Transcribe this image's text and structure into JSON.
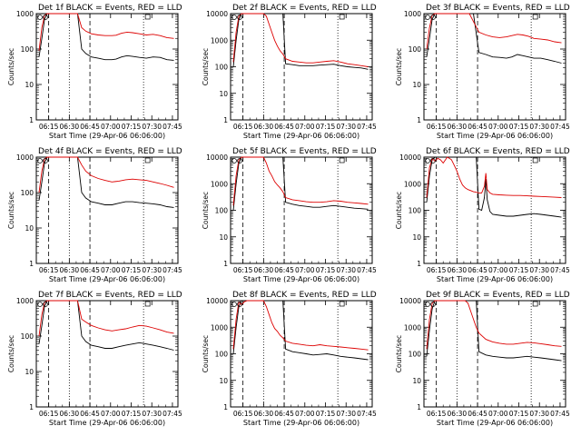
{
  "figure": {
    "xlabel": "Start Time (29-Apr-06 06:06:00)",
    "ylabel": "Counts/sec",
    "x_ticks": [
      "06:15",
      "06:30",
      "06:45",
      "07:00",
      "07:15",
      "07:30",
      "07:45"
    ],
    "y_ticks": [
      "1",
      "10",
      "100",
      "1000",
      "10000"
    ]
  },
  "colors": {
    "events": "#000000",
    "lld": "#dd0000",
    "axis": "#000000"
  },
  "chart_data": [
    {
      "type": "line",
      "title": "Det 1f BLACK = Events, RED = LLD",
      "y_log": true,
      "ylim": [
        1,
        1000
      ],
      "xlim_min": [
        0,
        103
      ],
      "x_min": [
        2,
        4,
        6,
        8,
        10,
        12,
        14,
        17,
        20,
        24,
        28,
        30,
        33,
        36,
        40,
        45,
        50,
        55,
        58,
        62,
        66,
        70,
        75,
        80,
        85,
        90,
        95,
        100
      ],
      "series": [
        {
          "name": "Events",
          "values": [
            60,
            200,
            700,
            1000,
            1000,
            1000,
            1000,
            1000,
            1000,
            1000,
            1000,
            1000,
            100,
            75,
            60,
            55,
            50,
            50,
            52,
            60,
            65,
            62,
            58,
            55,
            60,
            58,
            50,
            48
          ]
        },
        {
          "name": "LLD",
          "values": [
            90,
            400,
            900,
            1000,
            1000,
            1000,
            1000,
            1000,
            1000,
            1000,
            1000,
            1000,
            400,
            320,
            270,
            250,
            240,
            240,
            245,
            280,
            300,
            290,
            270,
            250,
            260,
            240,
            210,
            200
          ]
        }
      ]
    },
    {
      "type": "line",
      "title": "Det 2f BLACK = Events, RED = LLD",
      "y_log": true,
      "ylim": [
        1,
        10000
      ],
      "xlim_min": [
        0,
        103
      ],
      "x_min": [
        2,
        4,
        6,
        8,
        10,
        12,
        14,
        17,
        20,
        22,
        24,
        26,
        28,
        30,
        32,
        34,
        36,
        38,
        40,
        45,
        50,
        55,
        60,
        65,
        70,
        75,
        80,
        85,
        90,
        95,
        100
      ],
      "series": [
        {
          "name": "Events",
          "values": [
            100,
            1000,
            6000,
            10000,
            10000,
            10000,
            10000,
            10000,
            10000,
            10000,
            10000,
            10000,
            10000,
            10000,
            10000,
            10000,
            10000,
            10000,
            130,
            120,
            110,
            110,
            110,
            115,
            120,
            125,
            110,
            100,
            95,
            90,
            80
          ]
        },
        {
          "name": "LLD",
          "values": [
            150,
            2000,
            8000,
            10000,
            10000,
            10000,
            10000,
            10000,
            10000,
            10000,
            10000,
            8000,
            4000,
            2000,
            1000,
            600,
            400,
            300,
            200,
            160,
            150,
            140,
            140,
            150,
            160,
            170,
            150,
            130,
            120,
            110,
            100
          ]
        }
      ]
    },
    {
      "type": "line",
      "title": "Det 3f BLACK = Events, RED = LLD",
      "y_log": true,
      "ylim": [
        1,
        1000
      ],
      "xlim_min": [
        0,
        103
      ],
      "x_min": [
        2,
        4,
        6,
        8,
        10,
        12,
        14,
        17,
        20,
        24,
        28,
        30,
        33,
        36,
        40,
        45,
        50,
        55,
        60,
        64,
        68,
        72,
        76,
        80,
        85,
        90,
        95,
        100
      ],
      "series": [
        {
          "name": "Events",
          "values": [
            60,
            200,
            700,
            1000,
            1000,
            1000,
            1000,
            1000,
            1000,
            1000,
            1000,
            1000,
            1000,
            1000,
            80,
            70,
            60,
            58,
            55,
            60,
            70,
            65,
            60,
            55,
            55,
            50,
            45,
            40
          ]
        },
        {
          "name": "LLD",
          "values": [
            100,
            400,
            900,
            1000,
            1000,
            1000,
            1000,
            1000,
            1000,
            1000,
            1000,
            1000,
            1000,
            600,
            300,
            250,
            220,
            210,
            220,
            240,
            260,
            250,
            230,
            200,
            190,
            180,
            160,
            150
          ]
        }
      ]
    },
    {
      "type": "line",
      "title": "Det 4f BLACK = Events, RED = LLD",
      "y_log": true,
      "ylim": [
        1,
        1000
      ],
      "xlim_min": [
        0,
        103
      ],
      "x_min": [
        2,
        4,
        6,
        8,
        10,
        12,
        14,
        17,
        20,
        24,
        28,
        30,
        33,
        36,
        40,
        45,
        50,
        55,
        60,
        65,
        70,
        75,
        80,
        85,
        90,
        95,
        100
      ],
      "series": [
        {
          "name": "Events",
          "values": [
            60,
            200,
            700,
            1000,
            1000,
            1000,
            1000,
            1000,
            1000,
            1000,
            1000,
            1000,
            100,
            70,
            55,
            50,
            45,
            45,
            50,
            55,
            55,
            52,
            50,
            48,
            45,
            40,
            38
          ]
        },
        {
          "name": "LLD",
          "values": [
            100,
            400,
            900,
            1000,
            1000,
            1000,
            1000,
            1000,
            1000,
            1000,
            1000,
            1000,
            600,
            400,
            300,
            250,
            220,
            200,
            210,
            230,
            240,
            230,
            220,
            200,
            180,
            160,
            140
          ]
        }
      ]
    },
    {
      "type": "line",
      "title": "Det 5f BLACK = Events, RED = LLD",
      "y_log": true,
      "ylim": [
        1,
        10000
      ],
      "xlim_min": [
        0,
        103
      ],
      "x_min": [
        2,
        4,
        6,
        8,
        10,
        12,
        14,
        17,
        20,
        22,
        24,
        26,
        28,
        30,
        32,
        34,
        36,
        38,
        40,
        45,
        50,
        55,
        60,
        65,
        70,
        75,
        80,
        85,
        90,
        95,
        100
      ],
      "series": [
        {
          "name": "Events",
          "values": [
            100,
            1000,
            6000,
            10000,
            10000,
            10000,
            10000,
            10000,
            10000,
            10000,
            10000,
            10000,
            10000,
            10000,
            10000,
            10000,
            10000,
            10000,
            200,
            170,
            150,
            140,
            130,
            130,
            140,
            150,
            140,
            130,
            120,
            115,
            110
          ]
        },
        {
          "name": "LLD",
          "values": [
            150,
            2000,
            8000,
            10000,
            10000,
            10000,
            10000,
            10000,
            10000,
            10000,
            10000,
            6000,
            3000,
            2000,
            1200,
            900,
            700,
            500,
            300,
            250,
            230,
            210,
            200,
            200,
            210,
            230,
            220,
            200,
            190,
            180,
            170
          ]
        }
      ]
    },
    {
      "type": "line",
      "title": "Det 6f BLACK = Events, RED = LLD",
      "y_log": true,
      "ylim": [
        1,
        10000
      ],
      "xlim_min": [
        0,
        103
      ],
      "x_min": [
        2,
        4,
        6,
        8,
        10,
        12,
        14,
        17,
        20,
        22,
        24,
        26,
        28,
        30,
        32,
        34,
        36,
        38,
        40,
        42,
        44,
        45,
        46,
        48,
        50,
        55,
        60,
        65,
        70,
        75,
        80,
        85,
        90,
        95,
        100
      ],
      "series": [
        {
          "name": "Events",
          "values": [
            200,
            2000,
            8000,
            10000,
            10000,
            10000,
            10000,
            10000,
            10000,
            10000,
            10000,
            10000,
            10000,
            10000,
            10000,
            10000,
            10000,
            10000,
            110,
            100,
            300,
            1500,
            250,
            90,
            70,
            65,
            60,
            60,
            65,
            70,
            75,
            70,
            65,
            60,
            55
          ]
        },
        {
          "name": "LLD",
          "values": [
            300,
            4000,
            9000,
            7000,
            9000,
            8000,
            6000,
            10000,
            8000,
            5000,
            3000,
            1500,
            900,
            700,
            600,
            550,
            500,
            480,
            450,
            450,
            800,
            2500,
            600,
            450,
            400,
            380,
            370,
            360,
            360,
            350,
            340,
            330,
            320,
            310,
            300
          ]
        }
      ]
    },
    {
      "type": "line",
      "title": "Det 7f BLACK = Events, RED = LLD",
      "y_log": true,
      "ylim": [
        1,
        1000
      ],
      "xlim_min": [
        0,
        103
      ],
      "x_min": [
        2,
        4,
        6,
        8,
        10,
        12,
        14,
        17,
        20,
        24,
        28,
        30,
        33,
        36,
        40,
        45,
        50,
        55,
        60,
        65,
        70,
        75,
        80,
        85,
        90,
        95,
        100
      ],
      "series": [
        {
          "name": "Events",
          "values": [
            60,
            200,
            700,
            1000,
            1000,
            1000,
            1000,
            1000,
            1000,
            1000,
            1000,
            1000,
            100,
            70,
            55,
            50,
            45,
            45,
            50,
            55,
            60,
            65,
            60,
            55,
            50,
            45,
            40
          ]
        },
        {
          "name": "LLD",
          "values": [
            100,
            400,
            900,
            1000,
            1000,
            1000,
            1000,
            1000,
            1000,
            1000,
            1000,
            1000,
            300,
            250,
            200,
            170,
            150,
            140,
            150,
            160,
            180,
            200,
            190,
            170,
            150,
            130,
            120
          ]
        }
      ]
    },
    {
      "type": "line",
      "title": "Det 8f BLACK = Events, RED = LLD",
      "y_log": true,
      "ylim": [
        1,
        10000
      ],
      "xlim_min": [
        0,
        103
      ],
      "x_min": [
        2,
        4,
        6,
        8,
        10,
        12,
        14,
        17,
        20,
        22,
        24,
        26,
        28,
        30,
        32,
        34,
        36,
        38,
        40,
        45,
        50,
        55,
        60,
        65,
        70,
        75,
        80,
        85,
        90,
        95,
        100
      ],
      "series": [
        {
          "name": "Events",
          "values": [
            100,
            1000,
            6000,
            10000,
            10000,
            10000,
            10000,
            10000,
            10000,
            10000,
            10000,
            10000,
            10000,
            10000,
            10000,
            10000,
            10000,
            10000,
            150,
            120,
            110,
            100,
            90,
            95,
            100,
            90,
            80,
            75,
            70,
            65,
            60
          ]
        },
        {
          "name": "LLD",
          "values": [
            150,
            2000,
            9000,
            7000,
            9000,
            10000,
            10000,
            10000,
            10000,
            10000,
            10000,
            6000,
            3000,
            1500,
            900,
            700,
            500,
            400,
            300,
            250,
            230,
            210,
            200,
            220,
            200,
            190,
            180,
            170,
            160,
            150,
            140
          ]
        }
      ]
    },
    {
      "type": "line",
      "title": "Det 9f BLACK = Events, RED = LLD",
      "y_log": true,
      "ylim": [
        1,
        10000
      ],
      "xlim_min": [
        0,
        103
      ],
      "x_min": [
        2,
        4,
        6,
        8,
        10,
        12,
        14,
        17,
        20,
        24,
        28,
        30,
        32,
        34,
        36,
        38,
        40,
        45,
        50,
        55,
        60,
        65,
        70,
        75,
        80,
        85,
        90,
        95,
        100
      ],
      "series": [
        {
          "name": "Events",
          "values": [
            80,
            800,
            5000,
            10000,
            10000,
            10000,
            10000,
            10000,
            10000,
            10000,
            10000,
            10000,
            10000,
            10000,
            10000,
            10000,
            120,
            90,
            80,
            75,
            70,
            70,
            75,
            80,
            75,
            70,
            65,
            60,
            55
          ]
        },
        {
          "name": "LLD",
          "values": [
            150,
            2000,
            8000,
            10000,
            10000,
            10000,
            10000,
            10000,
            10000,
            10000,
            10000,
            10000,
            8000,
            4000,
            2000,
            1000,
            600,
            350,
            280,
            250,
            230,
            230,
            250,
            270,
            260,
            240,
            220,
            200,
            190
          ]
        }
      ]
    }
  ]
}
